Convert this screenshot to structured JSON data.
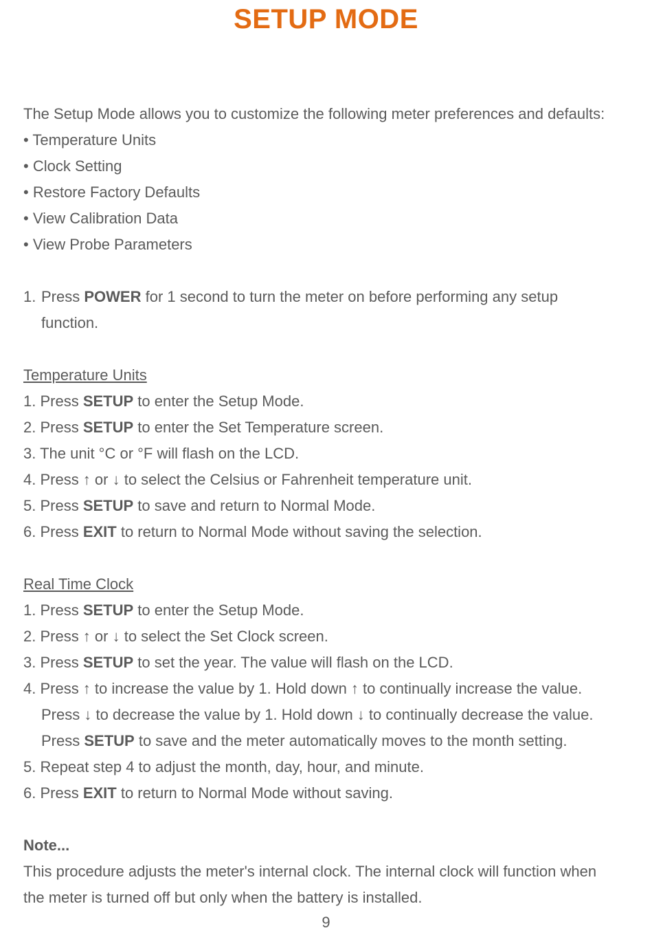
{
  "title": "SETUP MODE",
  "intro": "The Setup Mode allows you to customize the following meter preferences and defaults:",
  "bullets": {
    "b0": "Temperature Units",
    "b1": "Clock Setting",
    "b2": "Restore Factory Defaults",
    "b3": "View Calibration Data",
    "b4": "View Probe Parameters"
  },
  "step1": {
    "num": "1.",
    "a": "Press ",
    "b": "POWER",
    "c": " for 1 second to turn the meter on before performing any setup",
    "d": "function."
  },
  "temp": {
    "heading": "Temperature Units",
    "s1a": "1. Press ",
    "s1b": "SETUP",
    "s1c": " to enter the Setup Mode.",
    "s2a": "2. Press ",
    "s2b": "SETUP",
    "s2c": " to enter the Set Temperature screen.",
    "s3": "3. The unit °C or °F will flash on the LCD.",
    "s4": "4. Press ↑ or ↓ to select the Celsius or Fahrenheit temperature unit.",
    "s5a": "5. Press ",
    "s5b": "SETUP",
    "s5c": " to save and return to Normal Mode.",
    "s6a": "6. Press ",
    "s6b": "EXIT",
    "s6c": " to return to Normal Mode without saving the selection."
  },
  "clock": {
    "heading": "Real Time Clock",
    "s1a": "1. Press ",
    "s1b": "SETUP",
    "s1c": " to enter the Setup Mode.",
    "s2": "2. Press ↑ or ↓ to select the Set Clock screen.",
    "s3a": "3. Press ",
    "s3b": "SETUP",
    "s3c": " to set the year. The value will flash on the LCD.",
    "s4": "4. Press ↑ to increase the value by 1. Hold down ↑ to continually increase the value.",
    "s4b": "Press ↓ to decrease the value by 1. Hold down ↓ to continually decrease the value.",
    "s4c_a": "Press ",
    "s4c_b": "SETUP",
    "s4c_c": " to save and the meter automatically moves to the month setting.",
    "s5": "5. Repeat step 4 to adjust the month, day, hour, and minute.",
    "s6a": "6. Press ",
    "s6b": "EXIT",
    "s6c": " to return to Normal Mode without saving."
  },
  "note": {
    "label": "Note...",
    "body1": "This procedure adjusts the meter's internal clock. The internal clock will function when",
    "body2": "the meter is turned off but only when the battery is installed."
  },
  "page_number": "9",
  "colors": {
    "title": "#e36b13",
    "text": "#5a5a5a",
    "background": "#ffffff"
  },
  "fontsizes": {
    "title_pt": 30,
    "body_pt": 16
  }
}
